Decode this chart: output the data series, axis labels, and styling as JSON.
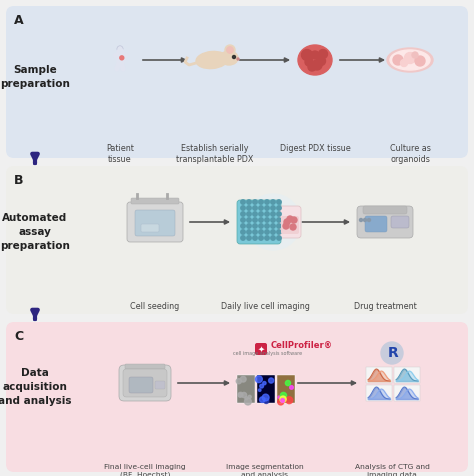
{
  "bg_color": "#f0f0f0",
  "panel_a_bg": "#dde5f0",
  "panel_b_bg": "#eeeeea",
  "panel_c_bg": "#f8dde2",
  "arrow_color": "#2d2580",
  "arrow_small": "#333333",
  "panel_a_label": "A",
  "panel_b_label": "B",
  "panel_c_label": "C",
  "panel_a_title": "Sample\npreparation",
  "panel_b_title": "Automated\nassay\npreparation",
  "panel_c_title": "Data\nacquisition\nand analysis",
  "panel_a_items": [
    "Patient\ntissue",
    "Establish serially\ntransplantable PDX",
    "Digest PDX tissue",
    "Culture as\norganoids"
  ],
  "panel_b_items": [
    "Cell seeding",
    "Daily live cell imaging",
    "Drug treatment"
  ],
  "panel_c_items": [
    "Final live-cell imaging\n(BF, Hoechst)\nMetabolic activity\nassay (CTG)",
    "Image segmentation\nand analysis",
    "Analysis of CTG and\nimaging data"
  ],
  "cellprofiler_text": "CellProfiler®",
  "cellprofiler_sub": "cell image analysis software",
  "r_logo_text": "R"
}
